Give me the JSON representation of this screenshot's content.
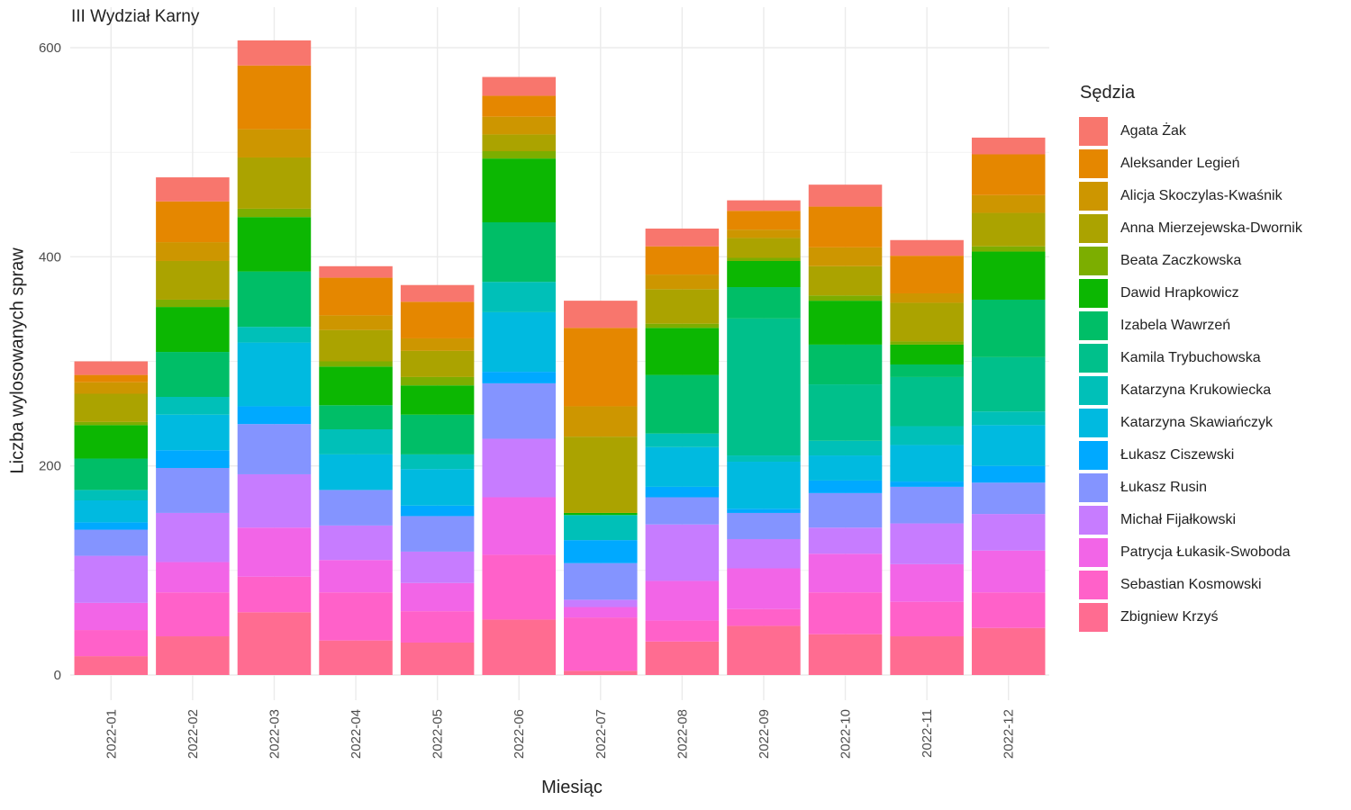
{
  "chart_data": {
    "type": "bar",
    "stacked": true,
    "title": "III Wydział Karny",
    "xlabel": "Miesiąc",
    "ylabel": "Liczba wylosowanych spraw",
    "ylim": [
      0,
      620
    ],
    "yticks": [
      0,
      200,
      400,
      600
    ],
    "grid": true,
    "legend_title": "Sędzia",
    "legend_position": "right",
    "categories": [
      "2022-01",
      "2022-02",
      "2022-03",
      "2022-04",
      "2022-05",
      "2022-06",
      "2022-07",
      "2022-08",
      "2022-09",
      "2022-10",
      "2022-11",
      "2022-12"
    ],
    "series": [
      {
        "name": "Zbigniew Krzyś",
        "color": "#FF6C91",
        "values": [
          18,
          37,
          60,
          33,
          31,
          53,
          4,
          32,
          47,
          39,
          37,
          45
        ]
      },
      {
        "name": "Sebastian Kosmowski",
        "color": "#FF61C9",
        "values": [
          25,
          42,
          34,
          46,
          30,
          62,
          51,
          20,
          16,
          40,
          33,
          34
        ]
      },
      {
        "name": "Patrycja Łukasik-Swoboda",
        "color": "#F265E7",
        "values": [
          26,
          29,
          47,
          31,
          27,
          55,
          10,
          38,
          39,
          37,
          36,
          40
        ]
      },
      {
        "name": "Michał Fijałkowski",
        "color": "#C77CFF",
        "values": [
          45,
          47,
          51,
          33,
          30,
          56,
          7,
          54,
          28,
          25,
          39,
          35
        ]
      },
      {
        "name": "Łukasz Rusin",
        "color": "#8494FF",
        "values": [
          25,
          43,
          48,
          34,
          34,
          53,
          35,
          26,
          25,
          33,
          35,
          30
        ]
      },
      {
        "name": "Łukasz Ciszewski",
        "color": "#00A9FF",
        "values": [
          7,
          17,
          17,
          0,
          10,
          11,
          22,
          10,
          4,
          12,
          5,
          16
        ]
      },
      {
        "name": "Katarzyna Skawiańczyk",
        "color": "#00BAE0",
        "values": [
          21,
          34,
          61,
          34,
          35,
          57,
          0,
          38,
          45,
          24,
          35,
          39
        ]
      },
      {
        "name": "Katarzyna Krukowiecka",
        "color": "#00C0B8",
        "values": [
          10,
          17,
          15,
          24,
          14,
          29,
          24,
          13,
          6,
          14,
          18,
          13
        ]
      },
      {
        "name": "Kamila Trybuchowska",
        "color": "#00C08B",
        "values": [
          0,
          0,
          0,
          0,
          0,
          0,
          0,
          0,
          131,
          54,
          47,
          52
        ]
      },
      {
        "name": "Izabela Wawrzeń",
        "color": "#00BE67",
        "values": [
          30,
          43,
          53,
          23,
          38,
          57,
          0,
          56,
          30,
          38,
          12,
          55
        ]
      },
      {
        "name": "Dawid Hrapkowicz",
        "color": "#0CB702",
        "values": [
          32,
          43,
          52,
          37,
          28,
          61,
          2,
          45,
          25,
          42,
          19,
          46
        ]
      },
      {
        "name": "Beata Zaczkowska",
        "color": "#7CAE00",
        "values": [
          3,
          7,
          8,
          5,
          8,
          7,
          0,
          4,
          3,
          5,
          3,
          5
        ]
      },
      {
        "name": "Anna Mierzejewska-Dwornik",
        "color": "#ABA300",
        "values": [
          27,
          37,
          49,
          30,
          25,
          16,
          73,
          33,
          19,
          28,
          37,
          32
        ]
      },
      {
        "name": "Alicja Skoczylas-Kwaśnik",
        "color": "#CD9600",
        "values": [
          11,
          18,
          27,
          14,
          12,
          17,
          29,
          14,
          8,
          18,
          9,
          17
        ]
      },
      {
        "name": "Aleksander Legień",
        "color": "#E58700",
        "values": [
          7,
          39,
          61,
          36,
          35,
          20,
          75,
          27,
          18,
          39,
          36,
          39
        ]
      },
      {
        "name": "Agata Żak",
        "color": "#F8766D",
        "values": [
          13,
          23,
          24,
          11,
          16,
          18,
          26,
          17,
          10,
          21,
          15,
          16
        ]
      }
    ]
  }
}
